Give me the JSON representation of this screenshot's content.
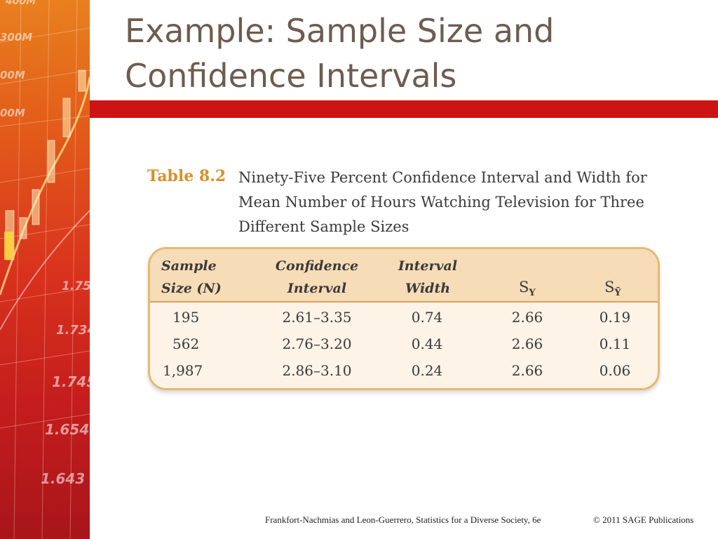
{
  "slide": {
    "title_line1": "Example: Sample Size and",
    "title_line2": "Confidence Intervals",
    "accent_color": "#cc1414",
    "title_color": "#6e5c4f"
  },
  "side_panel": {
    "numbers": [
      "400M",
      "300M",
      "00M",
      "00M",
      "1.75",
      "1.734",
      "1.745",
      "1.654",
      "1.643"
    ]
  },
  "table": {
    "label": "Table 8.2",
    "caption_line1": "Ninety-Five Percent Confidence Interval and Width for",
    "caption_line2": "Mean Number of Hours Watching Television for Three",
    "caption_line3": "Different Sample Sizes",
    "headers": {
      "sample_line1": "Sample",
      "sample_line2": "Size (N)",
      "ci_line1": "Confidence",
      "ci_line2": "Interval",
      "width_line1": "Interval",
      "width_line2": "Width",
      "sy": "S",
      "sy_sub": "Y",
      "sybar": "S",
      "sybar_sub": "Ȳ"
    },
    "rows": [
      {
        "n": "195",
        "ci": "2.61–3.35",
        "width": "0.74",
        "sy": "2.66",
        "sybar": "0.19"
      },
      {
        "n": "562",
        "ci": "2.76–3.20",
        "width": "0.44",
        "sy": "2.66",
        "sybar": "0.11"
      },
      {
        "n": "1,987",
        "ci": "2.86–3.10",
        "width": "0.24",
        "sy": "2.66",
        "sybar": "0.06"
      }
    ]
  },
  "footer": {
    "citation": "Frankfort-Nachmias and Leon-Guerrero, Statistics for a Diverse Society, 6e",
    "copyright": "© 2011 SAGE Publications"
  }
}
